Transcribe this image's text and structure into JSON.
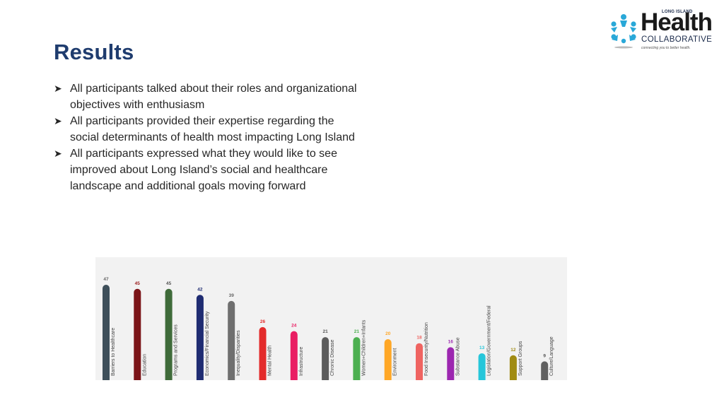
{
  "slide": {
    "title": "Results",
    "bullets": [
      "All participants talked about their roles and organizational objectives with enthusiasm",
      "All participants provided their expertise regarding the social determinants of health most impacting Long Island",
      "All participants expressed what they would like to see improved about Long Island’s social and healthcare landscape and additional goals moving forward"
    ]
  },
  "logo": {
    "top_text": "LONG ISLAND",
    "name": "Health",
    "sub": "COLLABORATIVE",
    "tagline": "connecting you to better health."
  },
  "chart_data": {
    "type": "bar",
    "categories": [
      "Barriers to Healthcare",
      "Education",
      "Programs and Services",
      "Economics/Financial Security",
      "Inequality/Disparities",
      "Mental Health",
      "Infrastructure",
      "Chronic Disease",
      "Women+Children+Infants",
      "Environment",
      "Food Insecurity/Nutrition",
      "Substance Abuse",
      "Legislation/Government/Federal",
      "Support Groups",
      "Culture/Language"
    ],
    "values": [
      47,
      45,
      45,
      42,
      39,
      26,
      24,
      21,
      21,
      20,
      18,
      16,
      13,
      12,
      9
    ],
    "colors": [
      "#3e4f5a",
      "#7b1418",
      "#3f6b3a",
      "#1f2c72",
      "#6f6f6f",
      "#e32b2b",
      "#e91e63",
      "#5c5c5c",
      "#4caf50",
      "#ffa726",
      "#ef6461",
      "#9c27b0",
      "#26c6da",
      "#a08b12",
      "#616161"
    ],
    "value_label_colors": [
      "#666666",
      "#9b1c1c",
      "#555555",
      "#1f2c72",
      "#666666",
      "#e32b2b",
      "#e91e63",
      "#555555",
      "#4caf50",
      "#ffa726",
      "#ef6461",
      "#9c27b0",
      "#26c6da",
      "#a08b12",
      "#555555"
    ],
    "ylim": [
      0,
      50
    ],
    "grid": false,
    "title": "",
    "xlabel": "",
    "ylabel": ""
  }
}
